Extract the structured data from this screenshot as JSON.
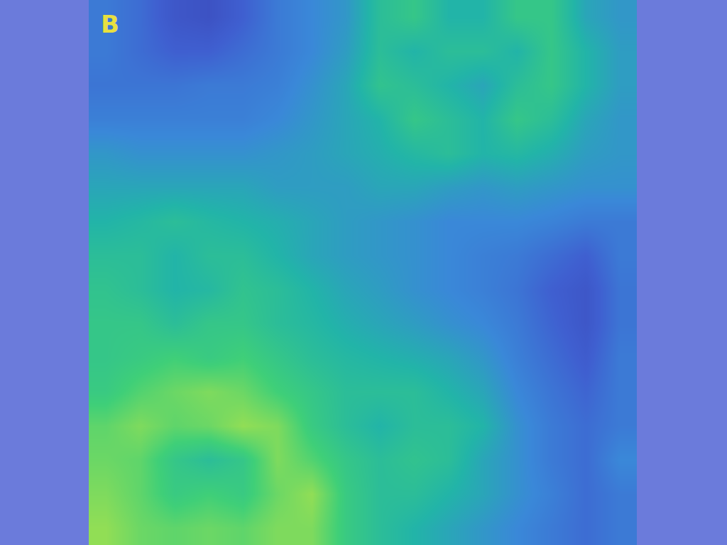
{
  "chart_data": {
    "type": "heatmap",
    "annotations": [
      {
        "text": "B"
      }
    ],
    "tick_labels": false,
    "zlim": [
      0,
      1
    ],
    "cells": [
      [
        0.3,
        0.25,
        0.15,
        0.12,
        0.2,
        0.3,
        0.35,
        0.4,
        0.55,
        0.6,
        0.5,
        0.5,
        0.6,
        0.6,
        0.45,
        0.4
      ],
      [
        0.3,
        0.25,
        0.2,
        0.2,
        0.25,
        0.3,
        0.35,
        0.42,
        0.55,
        0.5,
        0.55,
        0.55,
        0.5,
        0.6,
        0.5,
        0.42
      ],
      [
        0.28,
        0.28,
        0.28,
        0.3,
        0.3,
        0.32,
        0.38,
        0.45,
        0.58,
        0.55,
        0.5,
        0.45,
        0.55,
        0.6,
        0.5,
        0.42
      ],
      [
        0.32,
        0.32,
        0.32,
        0.32,
        0.32,
        0.35,
        0.4,
        0.45,
        0.5,
        0.6,
        0.55,
        0.5,
        0.6,
        0.55,
        0.45,
        0.4
      ],
      [
        0.4,
        0.38,
        0.38,
        0.38,
        0.38,
        0.4,
        0.42,
        0.45,
        0.48,
        0.52,
        0.55,
        0.5,
        0.52,
        0.48,
        0.42,
        0.4
      ],
      [
        0.45,
        0.45,
        0.45,
        0.45,
        0.45,
        0.42,
        0.42,
        0.42,
        0.45,
        0.45,
        0.42,
        0.4,
        0.42,
        0.4,
        0.38,
        0.38
      ],
      [
        0.5,
        0.52,
        0.55,
        0.52,
        0.5,
        0.48,
        0.45,
        0.42,
        0.4,
        0.38,
        0.35,
        0.35,
        0.35,
        0.33,
        0.3,
        0.3
      ],
      [
        0.55,
        0.55,
        0.5,
        0.55,
        0.55,
        0.5,
        0.45,
        0.42,
        0.4,
        0.38,
        0.35,
        0.32,
        0.3,
        0.25,
        0.2,
        0.3
      ],
      [
        0.58,
        0.55,
        0.5,
        0.52,
        0.58,
        0.55,
        0.5,
        0.45,
        0.42,
        0.38,
        0.35,
        0.32,
        0.28,
        0.2,
        0.15,
        0.28
      ],
      [
        0.6,
        0.6,
        0.55,
        0.6,
        0.6,
        0.55,
        0.52,
        0.48,
        0.45,
        0.42,
        0.38,
        0.35,
        0.3,
        0.22,
        0.15,
        0.28
      ],
      [
        0.6,
        0.62,
        0.65,
        0.62,
        0.65,
        0.6,
        0.55,
        0.52,
        0.5,
        0.48,
        0.45,
        0.4,
        0.32,
        0.25,
        0.18,
        0.3
      ],
      [
        0.62,
        0.68,
        0.72,
        0.75,
        0.72,
        0.65,
        0.6,
        0.55,
        0.55,
        0.55,
        0.5,
        0.45,
        0.35,
        0.28,
        0.22,
        0.3
      ],
      [
        0.7,
        0.75,
        0.7,
        0.72,
        0.78,
        0.75,
        0.62,
        0.55,
        0.5,
        0.55,
        0.55,
        0.5,
        0.38,
        0.3,
        0.25,
        0.3
      ],
      [
        0.72,
        0.7,
        0.6,
        0.55,
        0.6,
        0.75,
        0.68,
        0.6,
        0.55,
        0.58,
        0.55,
        0.45,
        0.38,
        0.3,
        0.25,
        0.35
      ],
      [
        0.75,
        0.7,
        0.62,
        0.65,
        0.62,
        0.72,
        0.78,
        0.62,
        0.55,
        0.55,
        0.5,
        0.45,
        0.38,
        0.32,
        0.25,
        0.3
      ],
      [
        0.78,
        0.72,
        0.7,
        0.72,
        0.7,
        0.75,
        0.75,
        0.62,
        0.55,
        0.5,
        0.45,
        0.4,
        0.35,
        0.3,
        0.25,
        0.3
      ]
    ]
  }
}
